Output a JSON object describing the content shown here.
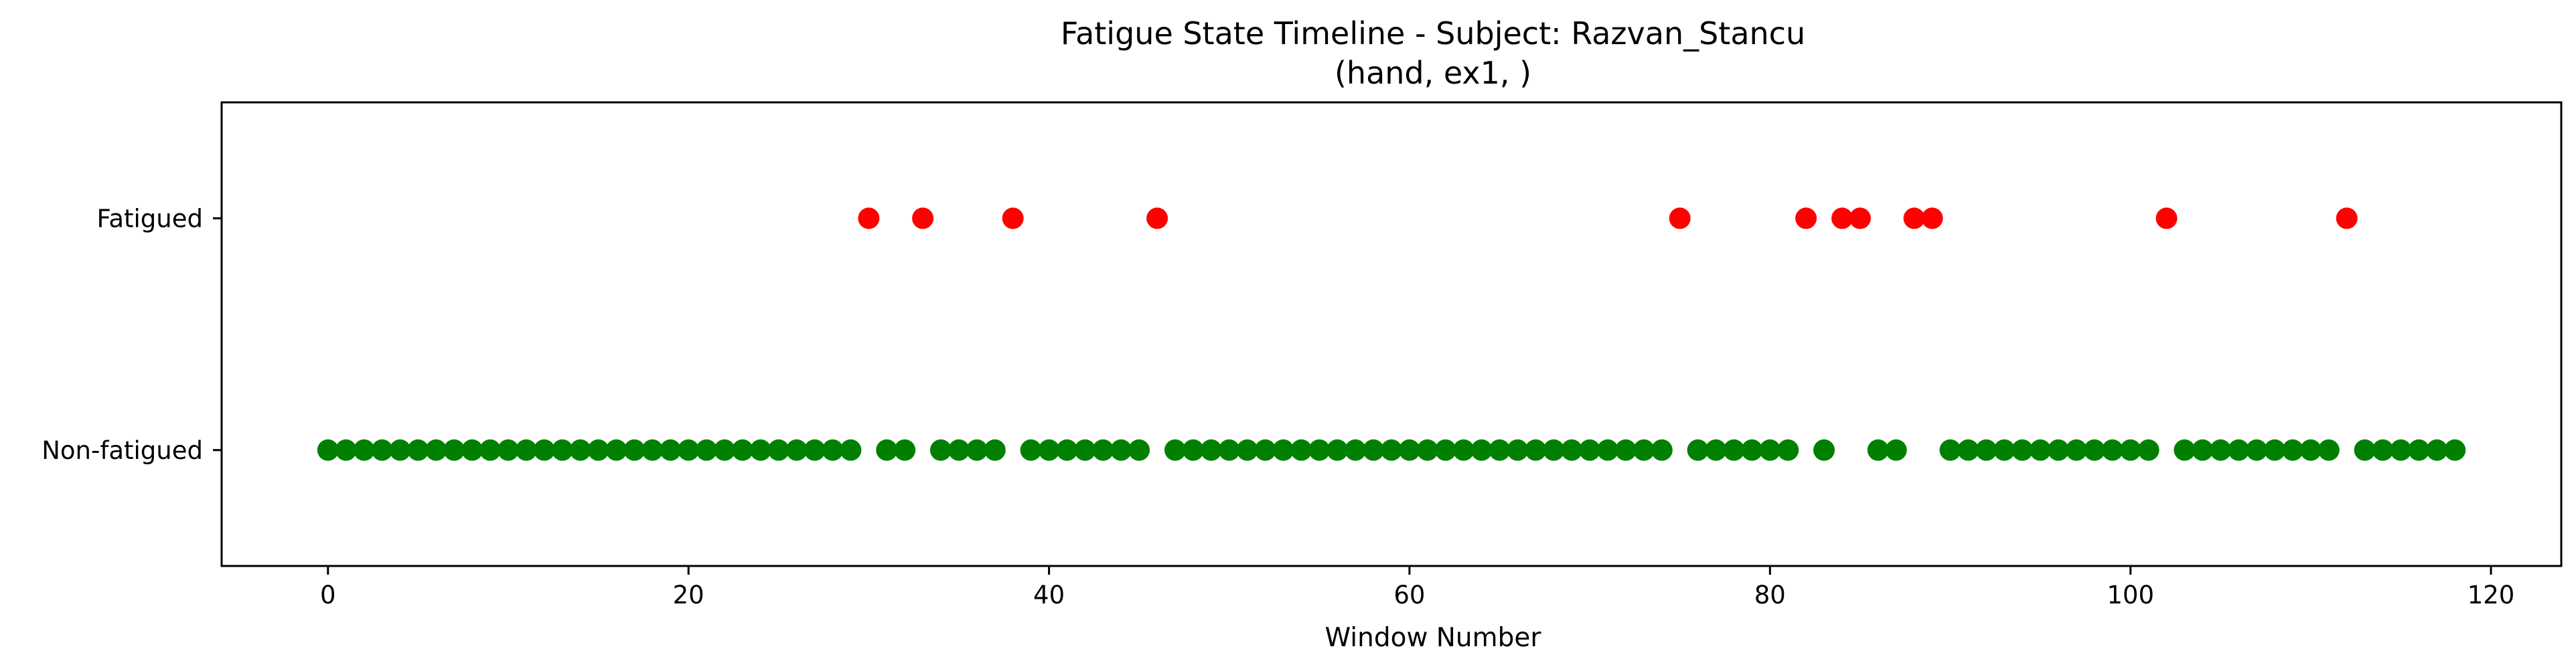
{
  "chart_data": {
    "type": "scatter",
    "title": "Fatigue State Timeline - Subject: Razvan_Stancu",
    "subtitle": "(hand, ex1, )",
    "xlabel": "Window Number",
    "ylabel": "",
    "xlim": [
      -5.9,
      123.9
    ],
    "ylim": [
      -0.5,
      1.5
    ],
    "x_ticks": [
      0,
      20,
      40,
      60,
      80,
      100,
      120
    ],
    "y_ticks": [
      {
        "value": 0,
        "label": "Non-fatigued"
      },
      {
        "value": 1,
        "label": "Fatigued"
      }
    ],
    "grid": false,
    "legend": "none",
    "colors": {
      "fatigued": "#ff0000",
      "non_fatigued": "#008000"
    },
    "points": [
      {
        "x": 0,
        "y": 0
      },
      {
        "x": 1,
        "y": 0
      },
      {
        "x": 2,
        "y": 0
      },
      {
        "x": 3,
        "y": 0
      },
      {
        "x": 4,
        "y": 0
      },
      {
        "x": 5,
        "y": 0
      },
      {
        "x": 6,
        "y": 0
      },
      {
        "x": 7,
        "y": 0
      },
      {
        "x": 8,
        "y": 0
      },
      {
        "x": 9,
        "y": 0
      },
      {
        "x": 10,
        "y": 0
      },
      {
        "x": 11,
        "y": 0
      },
      {
        "x": 12,
        "y": 0
      },
      {
        "x": 13,
        "y": 0
      },
      {
        "x": 14,
        "y": 0
      },
      {
        "x": 15,
        "y": 0
      },
      {
        "x": 16,
        "y": 0
      },
      {
        "x": 17,
        "y": 0
      },
      {
        "x": 18,
        "y": 0
      },
      {
        "x": 19,
        "y": 0
      },
      {
        "x": 20,
        "y": 0
      },
      {
        "x": 21,
        "y": 0
      },
      {
        "x": 22,
        "y": 0
      },
      {
        "x": 23,
        "y": 0
      },
      {
        "x": 24,
        "y": 0
      },
      {
        "x": 25,
        "y": 0
      },
      {
        "x": 26,
        "y": 0
      },
      {
        "x": 27,
        "y": 0
      },
      {
        "x": 28,
        "y": 0
      },
      {
        "x": 29,
        "y": 0
      },
      {
        "x": 30,
        "y": 1
      },
      {
        "x": 31,
        "y": 0
      },
      {
        "x": 32,
        "y": 0
      },
      {
        "x": 33,
        "y": 1
      },
      {
        "x": 34,
        "y": 0
      },
      {
        "x": 35,
        "y": 0
      },
      {
        "x": 36,
        "y": 0
      },
      {
        "x": 37,
        "y": 0
      },
      {
        "x": 38,
        "y": 1
      },
      {
        "x": 39,
        "y": 0
      },
      {
        "x": 40,
        "y": 0
      },
      {
        "x": 41,
        "y": 0
      },
      {
        "x": 42,
        "y": 0
      },
      {
        "x": 43,
        "y": 0
      },
      {
        "x": 44,
        "y": 0
      },
      {
        "x": 45,
        "y": 0
      },
      {
        "x": 46,
        "y": 1
      },
      {
        "x": 47,
        "y": 0
      },
      {
        "x": 48,
        "y": 0
      },
      {
        "x": 49,
        "y": 0
      },
      {
        "x": 50,
        "y": 0
      },
      {
        "x": 51,
        "y": 0
      },
      {
        "x": 52,
        "y": 0
      },
      {
        "x": 53,
        "y": 0
      },
      {
        "x": 54,
        "y": 0
      },
      {
        "x": 55,
        "y": 0
      },
      {
        "x": 56,
        "y": 0
      },
      {
        "x": 57,
        "y": 0
      },
      {
        "x": 58,
        "y": 0
      },
      {
        "x": 59,
        "y": 0
      },
      {
        "x": 60,
        "y": 0
      },
      {
        "x": 61,
        "y": 0
      },
      {
        "x": 62,
        "y": 0
      },
      {
        "x": 63,
        "y": 0
      },
      {
        "x": 64,
        "y": 0
      },
      {
        "x": 65,
        "y": 0
      },
      {
        "x": 66,
        "y": 0
      },
      {
        "x": 67,
        "y": 0
      },
      {
        "x": 68,
        "y": 0
      },
      {
        "x": 69,
        "y": 0
      },
      {
        "x": 70,
        "y": 0
      },
      {
        "x": 71,
        "y": 0
      },
      {
        "x": 72,
        "y": 0
      },
      {
        "x": 73,
        "y": 0
      },
      {
        "x": 74,
        "y": 0
      },
      {
        "x": 75,
        "y": 1
      },
      {
        "x": 76,
        "y": 0
      },
      {
        "x": 77,
        "y": 0
      },
      {
        "x": 78,
        "y": 0
      },
      {
        "x": 79,
        "y": 0
      },
      {
        "x": 80,
        "y": 0
      },
      {
        "x": 81,
        "y": 0
      },
      {
        "x": 82,
        "y": 1
      },
      {
        "x": 83,
        "y": 0
      },
      {
        "x": 84,
        "y": 1
      },
      {
        "x": 85,
        "y": 1
      },
      {
        "x": 86,
        "y": 0
      },
      {
        "x": 87,
        "y": 0
      },
      {
        "x": 88,
        "y": 1
      },
      {
        "x": 89,
        "y": 1
      },
      {
        "x": 90,
        "y": 0
      },
      {
        "x": 91,
        "y": 0
      },
      {
        "x": 92,
        "y": 0
      },
      {
        "x": 93,
        "y": 0
      },
      {
        "x": 94,
        "y": 0
      },
      {
        "x": 95,
        "y": 0
      },
      {
        "x": 96,
        "y": 0
      },
      {
        "x": 97,
        "y": 0
      },
      {
        "x": 98,
        "y": 0
      },
      {
        "x": 99,
        "y": 0
      },
      {
        "x": 100,
        "y": 0
      },
      {
        "x": 101,
        "y": 0
      },
      {
        "x": 102,
        "y": 1
      },
      {
        "x": 103,
        "y": 0
      },
      {
        "x": 104,
        "y": 0
      },
      {
        "x": 105,
        "y": 0
      },
      {
        "x": 106,
        "y": 0
      },
      {
        "x": 107,
        "y": 0
      },
      {
        "x": 108,
        "y": 0
      },
      {
        "x": 109,
        "y": 0
      },
      {
        "x": 110,
        "y": 0
      },
      {
        "x": 111,
        "y": 0
      },
      {
        "x": 112,
        "y": 1
      },
      {
        "x": 113,
        "y": 0
      },
      {
        "x": 114,
        "y": 0
      },
      {
        "x": 115,
        "y": 0
      },
      {
        "x": 116,
        "y": 0
      },
      {
        "x": 117,
        "y": 0
      },
      {
        "x": 118,
        "y": 0
      }
    ]
  }
}
